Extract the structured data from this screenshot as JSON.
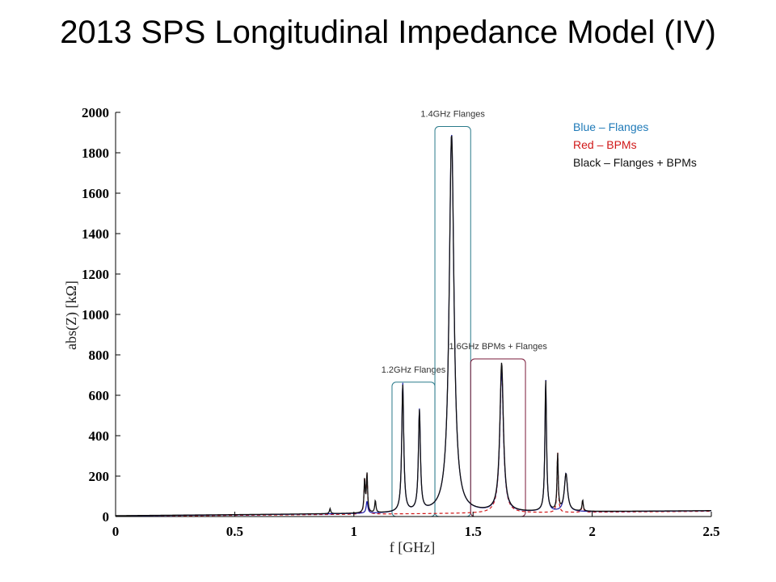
{
  "slide": {
    "title": "2013 SPS Longitudinal Impedance Model (IV)"
  },
  "chart_data": {
    "type": "line",
    "title": "",
    "xlabel": "f [GHz]",
    "ylabel": "abs(Z) [kΩ]",
    "xlim": [
      0,
      2.5
    ],
    "ylim": [
      0,
      2000
    ],
    "xticks": [
      "0",
      "0.5",
      "1",
      "1.5",
      "2",
      "2.5"
    ],
    "yticks": [
      "0",
      "200",
      "400",
      "600",
      "800",
      "1000",
      "1200",
      "1400",
      "1600",
      "1800",
      "2000"
    ],
    "grid": false,
    "legend": [
      {
        "text": "Blue – Flanges",
        "color": "#1f7ab8"
      },
      {
        "text": "Red – BPMs",
        "color": "#d01818"
      },
      {
        "text": "Black – Flanges + BPMs",
        "color": "#111111"
      }
    ],
    "annotations": [
      {
        "text": "1.2GHz Flanges",
        "x_range": [
          1.16,
          1.34
        ],
        "y_top": 665,
        "color": "#2a7a8a"
      },
      {
        "text": "1.4GHz Flanges",
        "x_range": [
          1.34,
          1.49
        ],
        "y_top": 1930,
        "color": "#2a7a8a"
      },
      {
        "text": "1.6GHz BPMs + Flanges",
        "x_range": [
          1.49,
          1.72
        ],
        "y_top": 780,
        "color": "#7a1a3a"
      }
    ],
    "series": [
      {
        "label": "Flanges",
        "color": "#1a1aa8",
        "style": "solid",
        "baseline": 3,
        "resonances": [
          {
            "f": 1.055,
            "peak": 60,
            "width": 0.004
          },
          {
            "f": 1.205,
            "peak": 640,
            "width": 0.005
          },
          {
            "f": 1.275,
            "peak": 500,
            "width": 0.005
          },
          {
            "f": 1.41,
            "peak": 1875,
            "width": 0.012
          },
          {
            "f": 1.62,
            "peak": 700,
            "width": 0.009
          },
          {
            "f": 1.805,
            "peak": 655,
            "width": 0.004
          },
          {
            "f": 1.89,
            "peak": 190,
            "width": 0.008
          }
        ]
      },
      {
        "label": "BPMs",
        "color": "#d01818",
        "style": "dashed",
        "baseline": 1,
        "resonances": [
          {
            "f": 1.045,
            "peak": 170,
            "width": 0.003
          },
          {
            "f": 1.055,
            "peak": 195,
            "width": 0.003
          },
          {
            "f": 1.62,
            "peak": 720,
            "width": 0.009
          },
          {
            "f": 1.855,
            "peak": 300,
            "width": 0.003
          },
          {
            "f": 1.96,
            "peak": 60,
            "width": 0.003
          }
        ]
      },
      {
        "label": "Flanges + BPMs",
        "color": "#111111",
        "style": "solid",
        "baseline": 4,
        "resonances": [
          {
            "f": 0.9,
            "peak": 25,
            "width": 0.003
          },
          {
            "f": 1.045,
            "peak": 160,
            "width": 0.003
          },
          {
            "f": 1.055,
            "peak": 190,
            "width": 0.003
          },
          {
            "f": 1.09,
            "peak": 60,
            "width": 0.003
          },
          {
            "f": 1.205,
            "peak": 630,
            "width": 0.005
          },
          {
            "f": 1.275,
            "peak": 495,
            "width": 0.005
          },
          {
            "f": 1.41,
            "peak": 1870,
            "width": 0.012
          },
          {
            "f": 1.62,
            "peak": 735,
            "width": 0.009
          },
          {
            "f": 1.805,
            "peak": 650,
            "width": 0.004
          },
          {
            "f": 1.855,
            "peak": 280,
            "width": 0.003
          },
          {
            "f": 1.89,
            "peak": 185,
            "width": 0.008
          },
          {
            "f": 1.96,
            "peak": 55,
            "width": 0.003
          }
        ]
      }
    ]
  }
}
